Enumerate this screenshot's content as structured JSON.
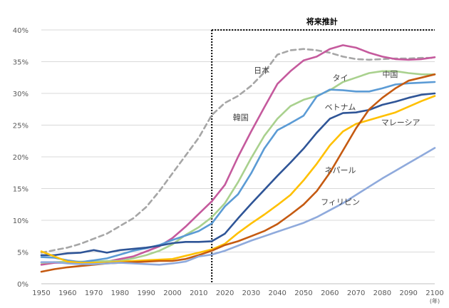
{
  "chart_data": {
    "type": "line",
    "title": "",
    "xlabel": "",
    "ylabel": "",
    "x_unit": "(年)",
    "xlim": [
      1950,
      2100
    ],
    "ylim": [
      0,
      40
    ],
    "x_ticks": [
      "1950",
      "1960",
      "1970",
      "1980",
      "1990",
      "2000",
      "2010",
      "2020",
      "2030",
      "2040",
      "2050",
      "2060",
      "2070",
      "2080",
      "2090",
      "2100"
    ],
    "y_ticks": [
      "0%",
      "5%",
      "10%",
      "15%",
      "20%",
      "25%",
      "30%",
      "35%",
      "40%"
    ],
    "grid": "horizontal",
    "legend": "inline labels",
    "projection_start": 2015,
    "projection_label": "将来推計",
    "x": [
      1950,
      1955,
      1960,
      1965,
      1970,
      1975,
      1980,
      1985,
      1990,
      1995,
      2000,
      2005,
      2010,
      2015,
      2020,
      2025,
      2030,
      2035,
      2040,
      2045,
      2050,
      2055,
      2060,
      2065,
      2070,
      2075,
      2080,
      2085,
      2090,
      2095,
      2100
    ],
    "series": [
      {
        "name": "日本",
        "color": "#a6a6a6",
        "dash": true,
        "values": [
          4.9,
          5.3,
          5.7,
          6.3,
          7.1,
          7.9,
          9.1,
          10.3,
          12.1,
          14.6,
          17.4,
          20.2,
          23.0,
          26.6,
          28.5,
          29.6,
          31.2,
          33.3,
          36.1,
          36.8,
          37.0,
          36.8,
          36.4,
          35.8,
          35.4,
          35.3,
          35.4,
          35.5,
          35.5,
          35.6,
          35.6
        ]
      },
      {
        "name": "韓国",
        "color": "#c55a9d",
        "values": [
          3.0,
          3.3,
          3.3,
          3.3,
          3.3,
          3.5,
          3.9,
          4.3,
          5.1,
          5.9,
          7.2,
          9.0,
          11.0,
          13.0,
          15.6,
          20.0,
          24.0,
          27.8,
          31.5,
          33.5,
          35.2,
          35.8,
          37.0,
          37.6,
          37.2,
          36.4,
          35.8,
          35.4,
          35.3,
          35.4,
          35.7
        ]
      },
      {
        "name": "タイ",
        "color": "#a9d18e",
        "values": [
          3.3,
          3.4,
          3.5,
          3.5,
          3.5,
          3.6,
          3.6,
          4.0,
          4.5,
          5.2,
          6.2,
          7.7,
          8.9,
          10.5,
          12.7,
          16.0,
          19.8,
          23.3,
          26.0,
          28.0,
          29.0,
          29.6,
          30.5,
          31.8,
          32.5,
          33.2,
          33.5,
          33.5,
          33.2,
          33.0,
          33.0
        ]
      },
      {
        "name": "中国",
        "color": "#5b9bd5",
        "values": [
          4.2,
          4.1,
          3.7,
          3.4,
          3.7,
          4.0,
          4.6,
          5.2,
          5.6,
          6.1,
          6.9,
          7.6,
          8.3,
          9.5,
          12.2,
          14.1,
          17.4,
          21.3,
          24.2,
          25.3,
          26.5,
          29.5,
          30.6,
          30.5,
          30.3,
          30.3,
          30.8,
          31.4,
          31.6,
          31.7,
          31.8
        ]
      },
      {
        "name": "ベトナム",
        "color": "#2f5597",
        "values": [
          4.5,
          4.5,
          4.8,
          4.9,
          5.3,
          4.9,
          5.3,
          5.5,
          5.7,
          6.0,
          6.4,
          6.6,
          6.6,
          6.7,
          7.9,
          10.3,
          12.6,
          14.8,
          17.0,
          19.1,
          21.3,
          23.8,
          26.0,
          26.9,
          27.0,
          27.4,
          28.2,
          28.7,
          29.3,
          29.8,
          30.0
        ]
      },
      {
        "name": "マレーシア",
        "color": "#ffc000",
        "values": [
          5.1,
          4.3,
          3.5,
          3.3,
          3.3,
          3.3,
          3.5,
          3.6,
          3.7,
          3.8,
          3.9,
          4.4,
          4.9,
          5.4,
          6.3,
          8.0,
          9.5,
          10.9,
          12.4,
          14.0,
          16.3,
          18.9,
          21.8,
          24.0,
          25.2,
          25.8,
          26.4,
          27.0,
          27.9,
          28.8,
          29.6
        ]
      },
      {
        "name": "ネパール",
        "color": "#c55a11",
        "values": [
          1.9,
          2.3,
          2.6,
          2.8,
          3.0,
          3.2,
          3.3,
          3.4,
          3.5,
          3.6,
          3.6,
          3.9,
          4.5,
          5.2,
          6.1,
          6.7,
          7.5,
          8.3,
          9.4,
          10.9,
          12.5,
          14.6,
          17.5,
          21.0,
          24.5,
          27.5,
          29.3,
          30.8,
          32.0,
          32.5,
          33.0
        ]
      },
      {
        "name": "フィリピン",
        "color": "#8faadc",
        "values": [
          3.4,
          3.4,
          3.2,
          3.1,
          3.1,
          3.2,
          3.3,
          3.2,
          3.1,
          3.0,
          3.2,
          3.5,
          4.3,
          4.6,
          5.2,
          6.0,
          6.8,
          7.5,
          8.2,
          8.9,
          9.6,
          10.5,
          11.6,
          12.7,
          14.0,
          15.3,
          16.6,
          17.8,
          19.0,
          20.2,
          21.4
        ]
      }
    ]
  }
}
